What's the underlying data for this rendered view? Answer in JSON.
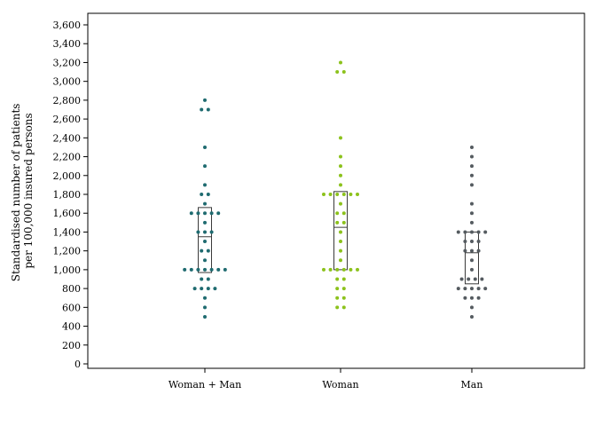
{
  "chart_data": {
    "type": "scatter",
    "subtype": "dot-strip-with-box",
    "ylabel_lines": [
      "Standardised number of patients",
      "per 100,000 insured persons"
    ],
    "xlabel": "",
    "ylim": [
      0,
      3700
    ],
    "yticks": [
      0,
      200,
      400,
      600,
      800,
      1000,
      1200,
      1400,
      1600,
      1800,
      2000,
      2200,
      2400,
      2600,
      2800,
      3000,
      3200,
      3400,
      3600
    ],
    "ytick_labels": [
      "0",
      "200",
      "400",
      "600",
      "800",
      "1,000",
      "1,200",
      "1,400",
      "1,600",
      "1,800",
      "2,000",
      "2,200",
      "2,400",
      "2,600",
      "2,800",
      "3,000",
      "3,200",
      "3,400",
      "3,600"
    ],
    "categories": [
      "Woman + Man",
      "Woman",
      "Man"
    ],
    "grid": false,
    "legend": "none",
    "series": [
      {
        "category": "Woman + Man",
        "color": "#1f6b70",
        "values": [
          2800,
          2700,
          2700,
          2300,
          2100,
          1900,
          1800,
          1800,
          1700,
          1600,
          1600,
          1600,
          1600,
          1600,
          1500,
          1400,
          1400,
          1400,
          1300,
          1200,
          1200,
          1100,
          1000,
          1000,
          1000,
          1000,
          1000,
          1000,
          1000,
          900,
          900,
          800,
          800,
          800,
          800,
          700,
          600,
          500
        ],
        "box": {
          "q1": 970,
          "median": 1350,
          "q3": 1660
        }
      },
      {
        "category": "Woman",
        "color": "#8cc21c",
        "values": [
          3200,
          3100,
          3100,
          2400,
          2200,
          2100,
          2000,
          1900,
          1800,
          1800,
          1800,
          1800,
          1800,
          1800,
          1700,
          1600,
          1600,
          1500,
          1500,
          1400,
          1300,
          1200,
          1100,
          1000,
          1000,
          1000,
          1000,
          1000,
          1000,
          900,
          900,
          800,
          800,
          700,
          700,
          600,
          600
        ],
        "box": {
          "q1": 1000,
          "median": 1450,
          "q3": 1830
        }
      },
      {
        "category": "Man",
        "color": "#555b60",
        "values": [
          2300,
          2200,
          2100,
          2000,
          1900,
          1700,
          1600,
          1500,
          1400,
          1400,
          1400,
          1400,
          1400,
          1300,
          1300,
          1300,
          1200,
          1200,
          1200,
          1100,
          1000,
          900,
          900,
          900,
          900,
          800,
          800,
          800,
          800,
          800,
          700,
          700,
          700,
          600,
          500
        ],
        "box": {
          "q1": 850,
          "median": 1180,
          "q3": 1400
        }
      }
    ]
  },
  "colors": {
    "woman_plus_man": "#1f6b70",
    "woman": "#8cc21c",
    "man": "#555b60",
    "axis": "#000000",
    "box": "#3a3a3a"
  }
}
